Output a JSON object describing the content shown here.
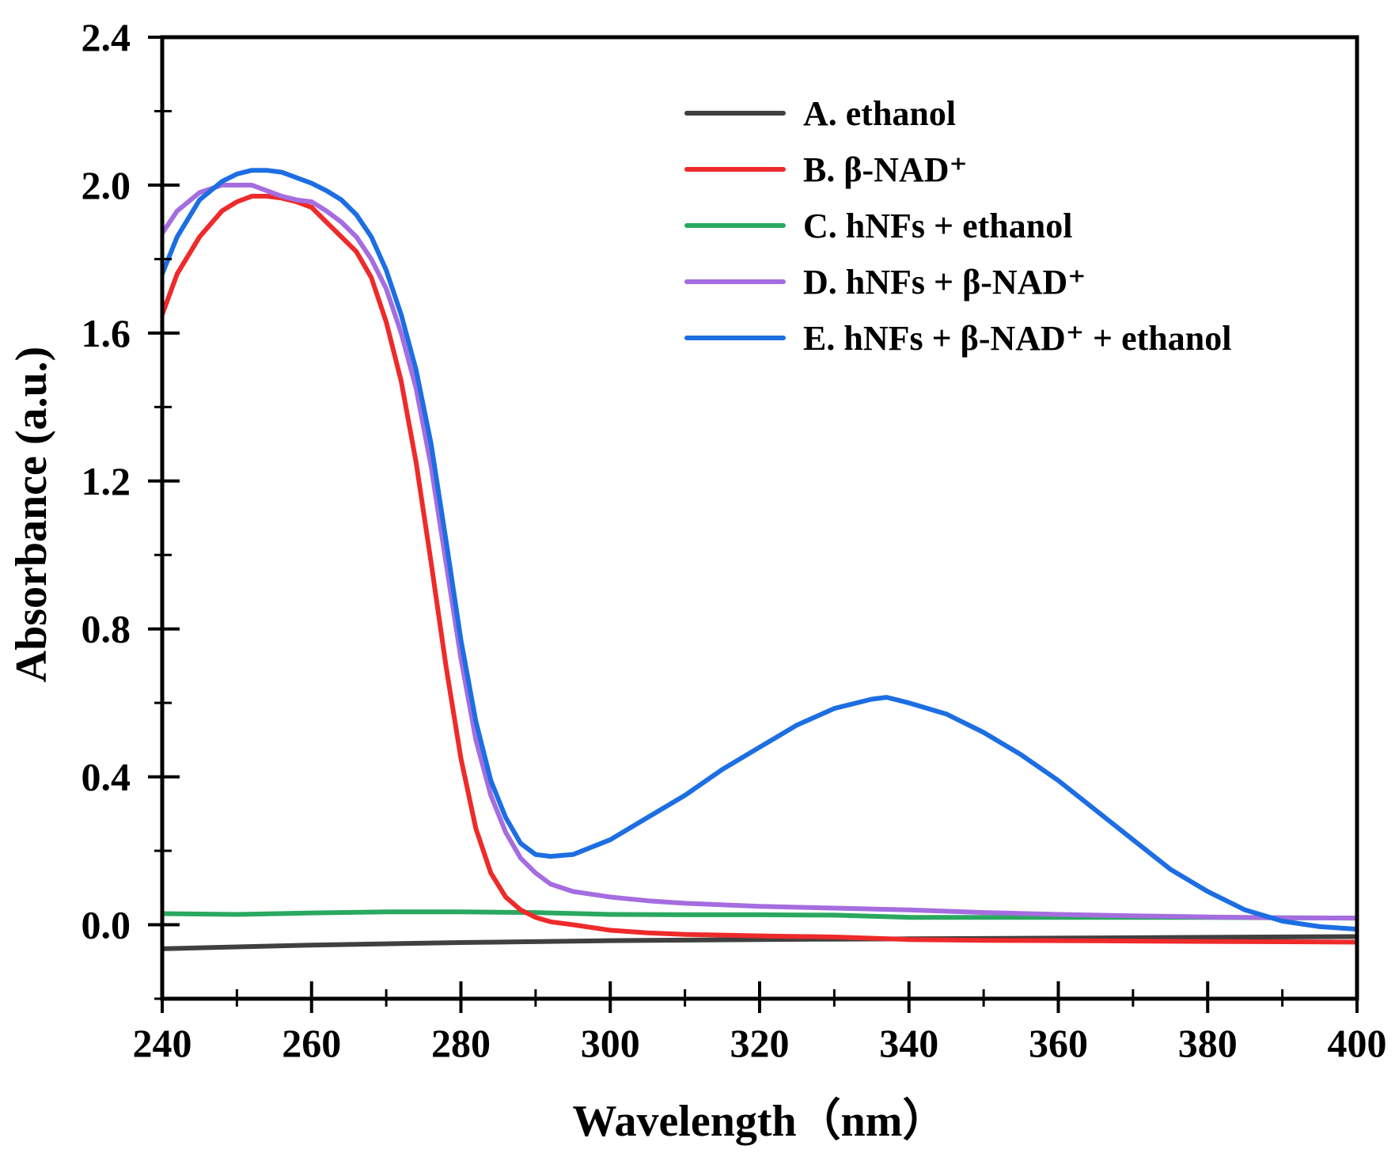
{
  "chart_data": {
    "type": "line",
    "title": "",
    "xlabel": "Wavelength（nm）",
    "ylabel": "Absorbance (a.u.)",
    "xlim": [
      240,
      400
    ],
    "ylim": [
      -0.2,
      2.4
    ],
    "xticks": [
      240,
      260,
      280,
      300,
      320,
      340,
      360,
      380,
      400
    ],
    "xtick_labels": [
      "240",
      "260",
      "280",
      "300",
      "320",
      "340",
      "360",
      "380",
      "400"
    ],
    "yticks": [
      0.0,
      0.4,
      0.8,
      1.2,
      1.6,
      2.0,
      2.4
    ],
    "ytick_labels": [
      "0.0",
      "0.4",
      "0.8",
      "1.2",
      "1.6",
      "2.0",
      "2.4"
    ],
    "grid": false,
    "legend_position": "top-right",
    "series": [
      {
        "name": "A. ethanol",
        "color": "#404040",
        "x": [
          240,
          260,
          280,
          300,
          320,
          340,
          360,
          380,
          400
        ],
        "y": [
          -0.065,
          -0.055,
          -0.048,
          -0.043,
          -0.04,
          -0.038,
          -0.036,
          -0.034,
          -0.032
        ]
      },
      {
        "name": "B. β-NAD⁺",
        "color": "#ee2a2a",
        "x": [
          240,
          242,
          245,
          248,
          250,
          252,
          254,
          256,
          258,
          260,
          262,
          264,
          266,
          268,
          270,
          272,
          274,
          276,
          278,
          280,
          282,
          284,
          286,
          288,
          290,
          292,
          295,
          300,
          305,
          310,
          320,
          330,
          340,
          350,
          360,
          370,
          380,
          390,
          400
        ],
        "y": [
          1.65,
          1.76,
          1.86,
          1.93,
          1.955,
          1.97,
          1.97,
          1.965,
          1.955,
          1.94,
          1.9,
          1.86,
          1.82,
          1.75,
          1.63,
          1.47,
          1.25,
          0.98,
          0.7,
          0.45,
          0.26,
          0.14,
          0.075,
          0.04,
          0.02,
          0.008,
          0.0,
          -0.015,
          -0.022,
          -0.026,
          -0.03,
          -0.033,
          -0.04,
          -0.042,
          -0.043,
          -0.044,
          -0.045,
          -0.046,
          -0.047
        ]
      },
      {
        "name": "C. hNFs + ethanol",
        "color": "#2aa860",
        "x": [
          240,
          250,
          260,
          270,
          280,
          290,
          300,
          310,
          320,
          330,
          340,
          350,
          360,
          370,
          380,
          390,
          400
        ],
        "y": [
          0.03,
          0.028,
          0.032,
          0.035,
          0.035,
          0.033,
          0.028,
          0.027,
          0.027,
          0.026,
          0.02,
          0.02,
          0.02,
          0.02,
          0.02,
          0.019,
          0.018
        ]
      },
      {
        "name": "D. hNFs + β-NAD⁺",
        "color": "#a56de0",
        "x": [
          240,
          242,
          245,
          248,
          250,
          252,
          254,
          256,
          258,
          260,
          262,
          264,
          266,
          268,
          270,
          272,
          274,
          276,
          278,
          280,
          282,
          284,
          286,
          288,
          290,
          292,
          295,
          300,
          305,
          310,
          320,
          330,
          340,
          350,
          360,
          370,
          380,
          390,
          400
        ],
        "y": [
          1.87,
          1.93,
          1.98,
          2.0,
          2.0,
          2.0,
          1.985,
          1.97,
          1.96,
          1.955,
          1.93,
          1.9,
          1.86,
          1.8,
          1.72,
          1.6,
          1.45,
          1.24,
          0.98,
          0.72,
          0.5,
          0.35,
          0.25,
          0.18,
          0.14,
          0.11,
          0.09,
          0.075,
          0.065,
          0.058,
          0.05,
          0.045,
          0.04,
          0.033,
          0.028,
          0.024,
          0.021,
          0.019,
          0.018
        ]
      },
      {
        "name": "E. hNFs + β-NAD⁺ + ethanol",
        "color": "#1c6ee2",
        "x": [
          240,
          242,
          245,
          248,
          250,
          252,
          254,
          256,
          258,
          260,
          262,
          264,
          266,
          268,
          270,
          272,
          274,
          276,
          278,
          280,
          282,
          284,
          286,
          288,
          290,
          292,
          295,
          300,
          305,
          310,
          315,
          320,
          325,
          330,
          335,
          337,
          340,
          345,
          350,
          355,
          360,
          365,
          370,
          375,
          380,
          385,
          390,
          395,
          400
        ],
        "y": [
          1.76,
          1.86,
          1.96,
          2.01,
          2.03,
          2.04,
          2.04,
          2.035,
          2.02,
          2.005,
          1.985,
          1.96,
          1.92,
          1.86,
          1.77,
          1.65,
          1.5,
          1.3,
          1.04,
          0.77,
          0.55,
          0.39,
          0.29,
          0.22,
          0.19,
          0.185,
          0.19,
          0.23,
          0.29,
          0.35,
          0.42,
          0.48,
          0.54,
          0.585,
          0.61,
          0.615,
          0.6,
          0.57,
          0.52,
          0.46,
          0.39,
          0.31,
          0.23,
          0.15,
          0.09,
          0.04,
          0.01,
          -0.005,
          -0.012
        ]
      }
    ]
  }
}
